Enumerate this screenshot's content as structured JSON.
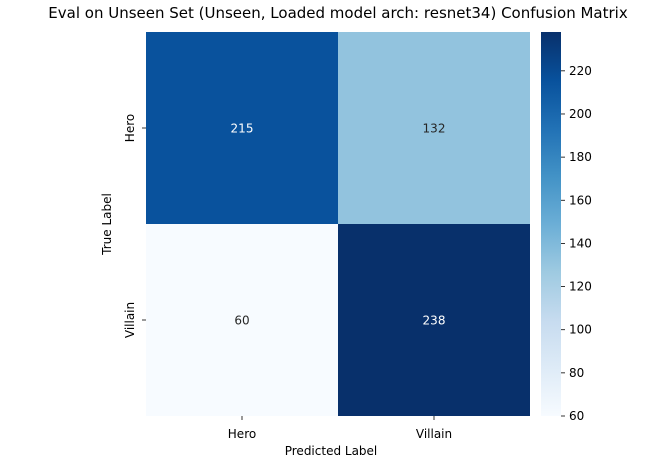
{
  "chart_data": {
    "type": "heatmap",
    "title": "Eval on Unseen Set (Unseen, Loaded model arch: resnet34) Confusion Matrix",
    "xlabel": "Predicted Label",
    "ylabel": "True Label",
    "x_categories": [
      "Hero",
      "Villain"
    ],
    "y_categories": [
      "Hero",
      "Villain"
    ],
    "values": [
      [
        215,
        132
      ],
      [
        60,
        238
      ]
    ],
    "colormap": "Blues",
    "colorbar": {
      "min": 60,
      "max": 238,
      "ticks": [
        "60",
        "80",
        "100",
        "120",
        "140",
        "160",
        "180",
        "200",
        "220"
      ]
    },
    "colors": {
      "low": "#f7fbff",
      "high": "#08306b",
      "annotation_light": "#ffffff",
      "annotation_dark": "#262626"
    }
  }
}
